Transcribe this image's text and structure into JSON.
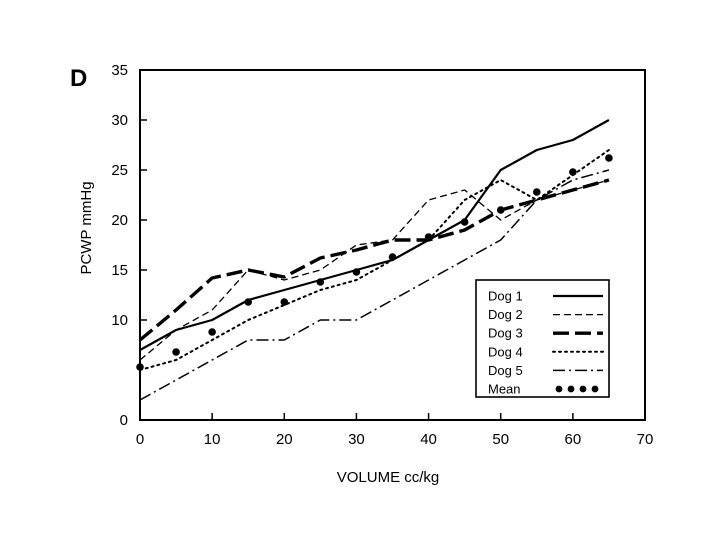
{
  "chart_data": {
    "type": "line",
    "panel_label": "D",
    "title": "",
    "xlabel": "VOLUME cc/kg",
    "ylabel": "PCWP mmHg",
    "xlim": [
      0,
      70
    ],
    "ylim": [
      0,
      35
    ],
    "x_ticks": [
      0,
      10,
      20,
      30,
      40,
      50,
      60,
      70
    ],
    "y_ticks": [
      0,
      10,
      15,
      20,
      25,
      30,
      35
    ],
    "grid": false,
    "legend_position": "bottom-right",
    "series": [
      {
        "name": "Dog 1",
        "style": "solid",
        "x": [
          0,
          5,
          10,
          15,
          20,
          25,
          30,
          35,
          40,
          45,
          47,
          50,
          55,
          60,
          65
        ],
        "y": [
          7,
          9,
          10,
          12,
          13,
          14,
          15,
          16,
          18,
          20,
          22,
          25,
          27,
          28,
          30
        ]
      },
      {
        "name": "Dog 2",
        "style": "short-dash",
        "x": [
          0,
          5,
          10,
          15,
          20,
          25,
          30,
          35,
          40,
          45,
          50,
          55,
          60,
          65
        ],
        "y": [
          6,
          9,
          11,
          15,
          14,
          15,
          17.5,
          18,
          22,
          23,
          20,
          22,
          23,
          24
        ]
      },
      {
        "name": "Dog 3",
        "style": "long-dash",
        "x": [
          0,
          5,
          10,
          15,
          20,
          25,
          30,
          35,
          40,
          45,
          50,
          55,
          60,
          65
        ],
        "y": [
          8,
          11,
          14.2,
          15,
          14.3,
          16.2,
          17,
          18,
          18,
          19,
          21,
          22,
          23,
          24
        ]
      },
      {
        "name": "Dog 4",
        "style": "dotted",
        "x": [
          0,
          5,
          10,
          15,
          20,
          25,
          30,
          35,
          40,
          45,
          50,
          55,
          60,
          65
        ],
        "y": [
          5,
          6,
          8,
          10,
          11.5,
          13,
          14,
          16,
          18,
          22,
          24,
          22,
          24.5,
          27
        ]
      },
      {
        "name": "Dog 5",
        "style": "dash-dot",
        "x": [
          0,
          5,
          10,
          15,
          20,
          25,
          30,
          35,
          40,
          45,
          50,
          55,
          60,
          65
        ],
        "y": [
          2,
          4,
          6,
          8,
          8,
          10,
          10,
          12,
          14,
          16,
          18,
          22,
          24,
          25
        ]
      },
      {
        "name": "Mean",
        "style": "markers",
        "x": [
          0,
          5,
          10,
          15,
          20,
          25,
          30,
          35,
          40,
          45,
          50,
          55,
          60,
          65
        ],
        "y": [
          5.3,
          6.8,
          8.8,
          11.8,
          11.8,
          13.8,
          14.8,
          16.3,
          18.3,
          19.8,
          21,
          22.8,
          24.8,
          26.2
        ]
      }
    ]
  }
}
